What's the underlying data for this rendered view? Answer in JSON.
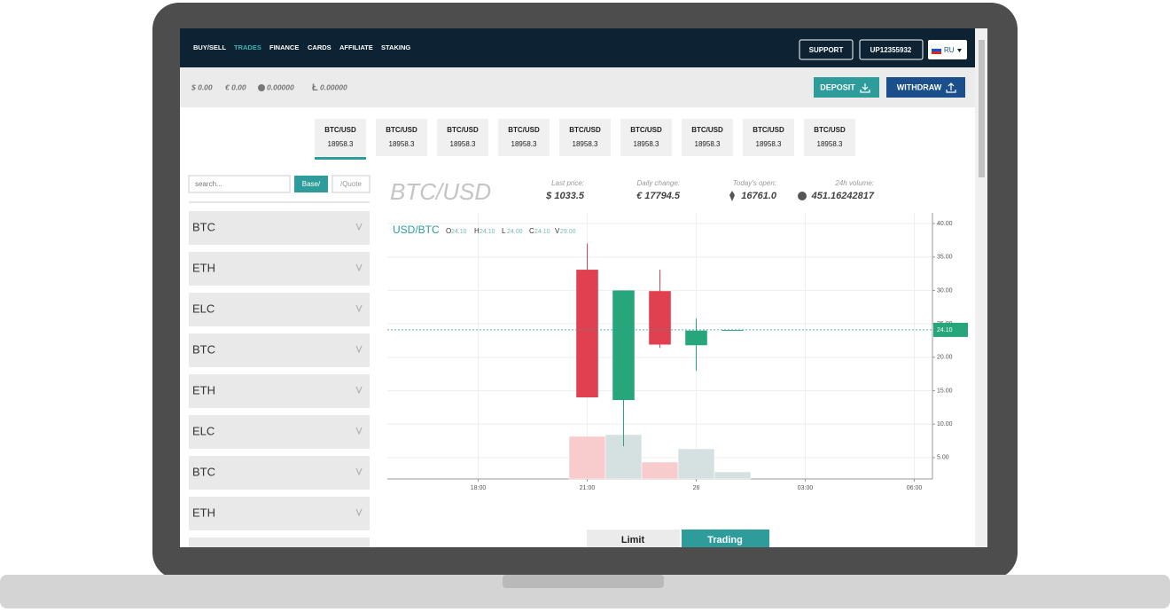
{
  "nav": {
    "links": [
      "BUY/SELL",
      "TRADES",
      "FINANCE",
      "CARDS",
      "AFFILIATE",
      "STAKING"
    ],
    "active": 1,
    "support": "SUPPORT",
    "account": "UP12355932",
    "language": "RU"
  },
  "balances": {
    "items": [
      "$ 0.00",
      "€ 0.00",
      "0.00000",
      "0.00000"
    ],
    "deposit": "DEPOSIT",
    "withdraw": "WITHDRAW"
  },
  "tickers": [
    {
      "pair": "BTC/USD",
      "price": "18958.3"
    },
    {
      "pair": "BTC/USD",
      "price": "18958.3"
    },
    {
      "pair": "BTC/USD",
      "price": "18958.3"
    },
    {
      "pair": "BTC/USD",
      "price": "18958.3"
    },
    {
      "pair": "BTC/USD",
      "price": "18958.3"
    },
    {
      "pair": "BTC/USD",
      "price": "18958.3"
    },
    {
      "pair": "BTC/USD",
      "price": "18958.3"
    },
    {
      "pair": "BTC/USD",
      "price": "18958.3"
    },
    {
      "pair": "BTC/USD",
      "price": "18958.3"
    }
  ],
  "sidebar": {
    "search_placeholder": "search...",
    "base": "Base/",
    "quote": "/Quote",
    "assets": [
      "BTC",
      "ETH",
      "ELC",
      "BTC",
      "ETH",
      "ELC",
      "BTC",
      "ETH"
    ]
  },
  "market": {
    "pair": "BTC/USD",
    "stats": [
      {
        "label": "Last price:",
        "value": "$ 1033.5"
      },
      {
        "label": "Daily change:",
        "value": "€ 17794.5"
      },
      {
        "label": "Today's open:",
        "value": "16761.0"
      },
      {
        "label": "24h volume:",
        "value": "451.16242817"
      }
    ]
  },
  "chart_data": {
    "type": "candlestick",
    "legend": "USD/BTC",
    "ohlcv": [
      {
        "key": "O",
        "value": "24.10"
      },
      {
        "key": "H",
        "value": "24.10"
      },
      {
        "key": "L",
        "value": "24.00"
      },
      {
        "key": "C",
        "value": "24.10"
      },
      {
        "key": "V",
        "value": "29.00"
      }
    ],
    "x": [
      21,
      22,
      23,
      24,
      25
    ],
    "open": [
      33.1,
      13.6,
      29.9,
      21.8,
      24.1
    ],
    "high": [
      37.0,
      30.0,
      33.1,
      25.8,
      24.1
    ],
    "low": [
      14.0,
      6.7,
      21.4,
      18.0,
      24.0
    ],
    "close": [
      14.0,
      30.0,
      21.9,
      24.0,
      24.1
    ],
    "volume": [
      174,
      181,
      69,
      123,
      29
    ],
    "up_color": "#26a67a",
    "down_color": "#e0404f",
    "volume_up_color": "#d5e1e1",
    "volume_down_color": "#f8cccc",
    "xlim": [
      15.5,
      30.5
    ],
    "xticks": [
      {
        "value": 18,
        "label": "18:00"
      },
      {
        "value": 21,
        "label": "21:00"
      },
      {
        "value": 24,
        "label": "26"
      },
      {
        "value": 27,
        "label": "03:00"
      },
      {
        "value": 30,
        "label": "06:00"
      }
    ],
    "ylim": [
      1.8,
      41.6
    ],
    "yticks": [
      {
        "value": 5,
        "label": "5.00"
      },
      {
        "value": 10,
        "label": "10.00"
      },
      {
        "value": 15,
        "label": "15.00"
      },
      {
        "value": 20,
        "label": "20.00"
      },
      {
        "value": 25,
        "label": "25.00"
      },
      {
        "value": 30,
        "label": "30.00"
      },
      {
        "value": 35,
        "label": "35.00"
      },
      {
        "value": 40,
        "label": "40.00"
      }
    ],
    "volume_lim": [
      0,
      362
    ],
    "last_price": {
      "value": 24.1,
      "label": "24.10"
    },
    "grid": true
  },
  "tabs": [
    "Limit",
    "Trading"
  ]
}
